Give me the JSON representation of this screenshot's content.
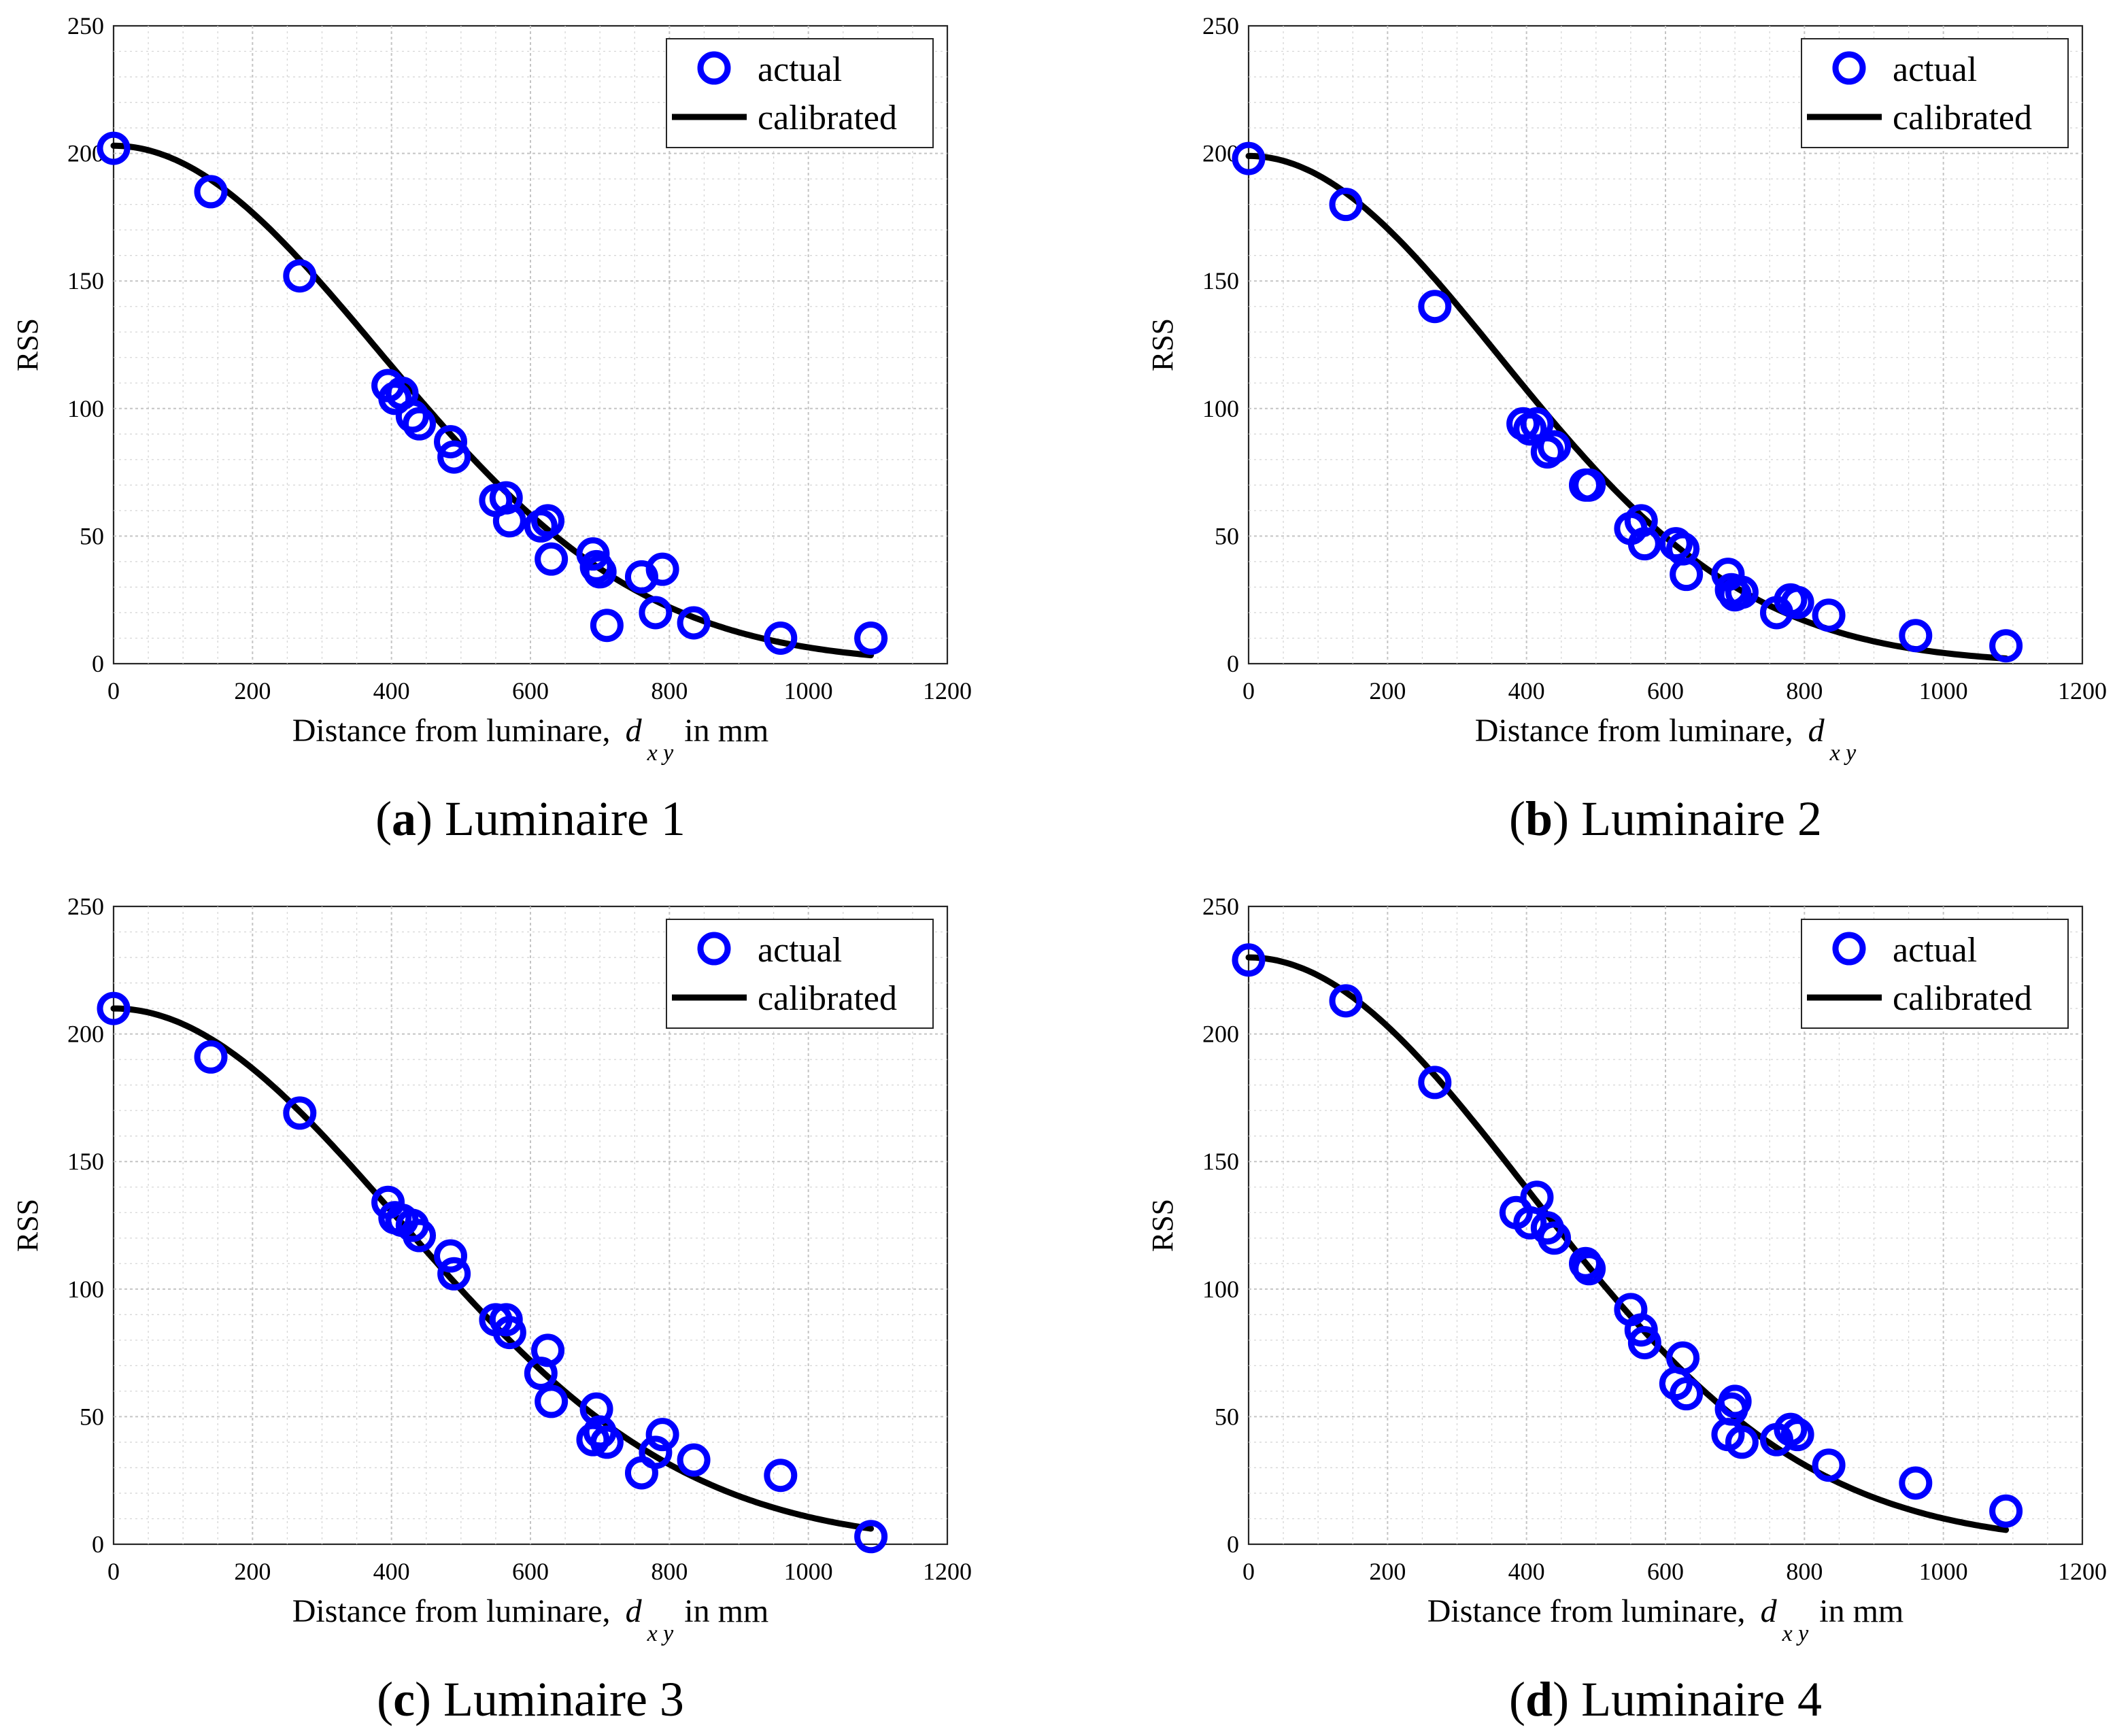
{
  "colors": {
    "actual": "#0000ff",
    "calibrated": "#000000",
    "grid": "#c4c4c4"
  },
  "chart_data": [
    {
      "type": "scatter",
      "caption_letter": "a",
      "caption_text": " Luminaire 1",
      "xlabel_prefix": "Distance from luminare,",
      "xlabel_var": "d",
      "xlabel_sub": "x y",
      "xlabel_suffix": "in mm",
      "ylabel": "RSS",
      "xlim": [
        0,
        1200
      ],
      "ylim": [
        0,
        250
      ],
      "xticks": [
        0,
        200,
        400,
        600,
        800,
        1000,
        1200
      ],
      "yticks": [
        0,
        50,
        100,
        150,
        200,
        250
      ],
      "grid": true,
      "legend_position": "top-right",
      "series": [
        {
          "name": "actual",
          "style": "markers",
          "x": [
            0,
            140,
            268,
            395,
            405,
            415,
            430,
            440,
            485,
            490,
            550,
            565,
            570,
            615,
            625,
            630,
            690,
            695,
            700,
            710,
            760,
            780,
            790,
            835,
            960,
            1090
          ],
          "y": [
            202,
            185,
            152,
            109,
            104,
            106,
            97,
            94,
            87,
            81,
            64,
            65,
            56,
            54,
            56,
            41,
            43,
            38,
            36,
            15,
            34,
            20,
            37,
            16,
            10,
            10
          ]
        },
        {
          "name": "calibrated",
          "style": "line",
          "gaussian": {
            "A": 203,
            "sigma": 380,
            "floor": 0
          },
          "xrange": [
            0,
            1090
          ]
        }
      ]
    },
    {
      "type": "scatter",
      "caption_letter": "b",
      "caption_text": " Luminaire 2",
      "xlabel_prefix": "Distance from luminare,",
      "xlabel_var": "d",
      "xlabel_sub": "x y",
      "xlabel_suffix": "",
      "ylabel": "RSS",
      "xlim": [
        0,
        1200
      ],
      "ylim": [
        0,
        250
      ],
      "xticks": [
        0,
        200,
        400,
        600,
        800,
        1000,
        1200
      ],
      "yticks": [
        0,
        50,
        100,
        150,
        200,
        250
      ],
      "grid": true,
      "legend_position": "top-right",
      "series": [
        {
          "name": "actual",
          "style": "markers",
          "x": [
            0,
            140,
            268,
            395,
            405,
            415,
            430,
            440,
            485,
            490,
            550,
            565,
            570,
            615,
            625,
            630,
            690,
            695,
            700,
            710,
            760,
            780,
            790,
            835,
            960,
            1090
          ],
          "y": [
            198,
            180,
            140,
            94,
            92,
            94,
            83,
            85,
            70,
            70,
            53,
            56,
            47,
            47,
            45,
            35,
            35,
            29,
            27,
            28,
            20,
            25,
            24,
            19,
            11,
            7
          ]
        },
        {
          "name": "calibrated",
          "style": "line",
          "gaussian": {
            "A": 199,
            "sigma": 360,
            "floor": 0
          },
          "xrange": [
            0,
            1090
          ]
        }
      ]
    },
    {
      "type": "scatter",
      "caption_letter": "c",
      "caption_text": " Luminaire 3",
      "xlabel_prefix": "Distance from luminare,",
      "xlabel_var": "d",
      "xlabel_sub": "x y",
      "xlabel_suffix": "in mm",
      "ylabel": "RSS",
      "xlim": [
        0,
        1200
      ],
      "ylim": [
        0,
        250
      ],
      "xticks": [
        0,
        200,
        400,
        600,
        800,
        1000,
        1200
      ],
      "yticks": [
        0,
        50,
        100,
        150,
        200,
        250
      ],
      "grid": true,
      "legend_position": "top-right",
      "series": [
        {
          "name": "actual",
          "style": "markers",
          "x": [
            0,
            140,
            268,
            395,
            405,
            415,
            430,
            440,
            485,
            490,
            550,
            565,
            570,
            615,
            625,
            630,
            690,
            695,
            700,
            710,
            760,
            780,
            790,
            835,
            960,
            1090
          ],
          "y": [
            210,
            191,
            169,
            134,
            128,
            127,
            125,
            121,
            113,
            106,
            88,
            88,
            83,
            67,
            76,
            56,
            41,
            53,
            44,
            40,
            28,
            36,
            43,
            33,
            27,
            3
          ]
        },
        {
          "name": "calibrated",
          "style": "line",
          "gaussian": {
            "A": 210,
            "sigma": 410,
            "floor": 0
          },
          "xrange": [
            0,
            1090
          ]
        }
      ]
    },
    {
      "type": "scatter",
      "caption_letter": "d",
      "caption_text": " Luminaire 4",
      "xlabel_prefix": "Distance from luminare,",
      "xlabel_var": "d",
      "xlabel_sub": "x y",
      "xlabel_suffix": "in mm",
      "ylabel": "RSS",
      "xlim": [
        0,
        1200
      ],
      "ylim": [
        0,
        250
      ],
      "xticks": [
        0,
        200,
        400,
        600,
        800,
        1000,
        1200
      ],
      "yticks": [
        0,
        50,
        100,
        150,
        200,
        250
      ],
      "grid": true,
      "legend_position": "top-right",
      "series": [
        {
          "name": "actual",
          "style": "markers",
          "x": [
            0,
            140,
            268,
            385,
            405,
            415,
            430,
            440,
            485,
            490,
            550,
            565,
            570,
            615,
            625,
            630,
            690,
            695,
            700,
            710,
            760,
            780,
            790,
            835,
            960,
            1090
          ],
          "y": [
            229,
            213,
            181,
            130,
            126,
            136,
            124,
            120,
            110,
            108,
            92,
            84,
            79,
            63,
            73,
            59,
            43,
            53,
            56,
            40,
            41,
            45,
            43,
            31,
            24,
            13
          ]
        },
        {
          "name": "calibrated",
          "style": "line",
          "gaussian": {
            "A": 230,
            "sigma": 400,
            "floor": 0
          },
          "xrange": [
            0,
            1090
          ]
        }
      ]
    }
  ]
}
